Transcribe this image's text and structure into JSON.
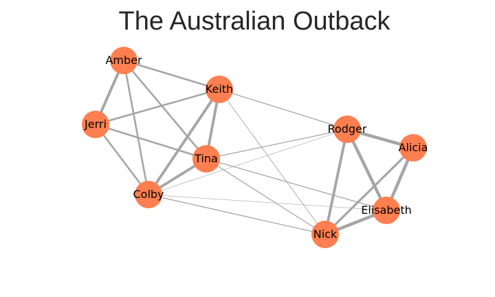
{
  "title": "The Australian Outback",
  "colors": {
    "node": "#ff7f50",
    "edge": "#a6a6a6",
    "title": "#262626"
  },
  "nodes": [
    {
      "id": "amber",
      "label": "Amber"
    },
    {
      "id": "keith",
      "label": "Keith"
    },
    {
      "id": "jerri",
      "label": "Jerri"
    },
    {
      "id": "tina",
      "label": "Tina"
    },
    {
      "id": "colby",
      "label": "Colby"
    },
    {
      "id": "rodger",
      "label": "Rodger"
    },
    {
      "id": "alicia",
      "label": "Alicia"
    },
    {
      "id": "elisabeth",
      "label": "Elisabeth"
    },
    {
      "id": "nick",
      "label": "Nick"
    }
  ],
  "edges": [
    {
      "source": "amber",
      "target": "jerri",
      "weight": 3
    },
    {
      "source": "amber",
      "target": "keith",
      "weight": 2
    },
    {
      "source": "amber",
      "target": "tina",
      "weight": 2
    },
    {
      "source": "amber",
      "target": "colby",
      "weight": 2
    },
    {
      "source": "jerri",
      "target": "keith",
      "weight": 2
    },
    {
      "source": "jerri",
      "target": "tina",
      "weight": 2
    },
    {
      "source": "jerri",
      "target": "colby",
      "weight": 2
    },
    {
      "source": "keith",
      "target": "tina",
      "weight": 3
    },
    {
      "source": "keith",
      "target": "colby",
      "weight": 3
    },
    {
      "source": "keith",
      "target": "rodger",
      "weight": 1
    },
    {
      "source": "keith",
      "target": "nick",
      "weight": 0.7
    },
    {
      "source": "tina",
      "target": "colby",
      "weight": 3
    },
    {
      "source": "tina",
      "target": "rodger",
      "weight": 1
    },
    {
      "source": "tina",
      "target": "nick",
      "weight": 1
    },
    {
      "source": "tina",
      "target": "elisabeth",
      "weight": 1
    },
    {
      "source": "colby",
      "target": "rodger",
      "weight": 0.5
    },
    {
      "source": "colby",
      "target": "nick",
      "weight": 1
    },
    {
      "source": "colby",
      "target": "elisabeth",
      "weight": 0.5
    },
    {
      "source": "rodger",
      "target": "alicia",
      "weight": 3.5
    },
    {
      "source": "rodger",
      "target": "elisabeth",
      "weight": 3.5
    },
    {
      "source": "rodger",
      "target": "nick",
      "weight": 3
    },
    {
      "source": "alicia",
      "target": "elisabeth",
      "weight": 3.5
    },
    {
      "source": "alicia",
      "target": "nick",
      "weight": 2.5
    },
    {
      "source": "elisabeth",
      "target": "nick",
      "weight": 3.5
    }
  ]
}
